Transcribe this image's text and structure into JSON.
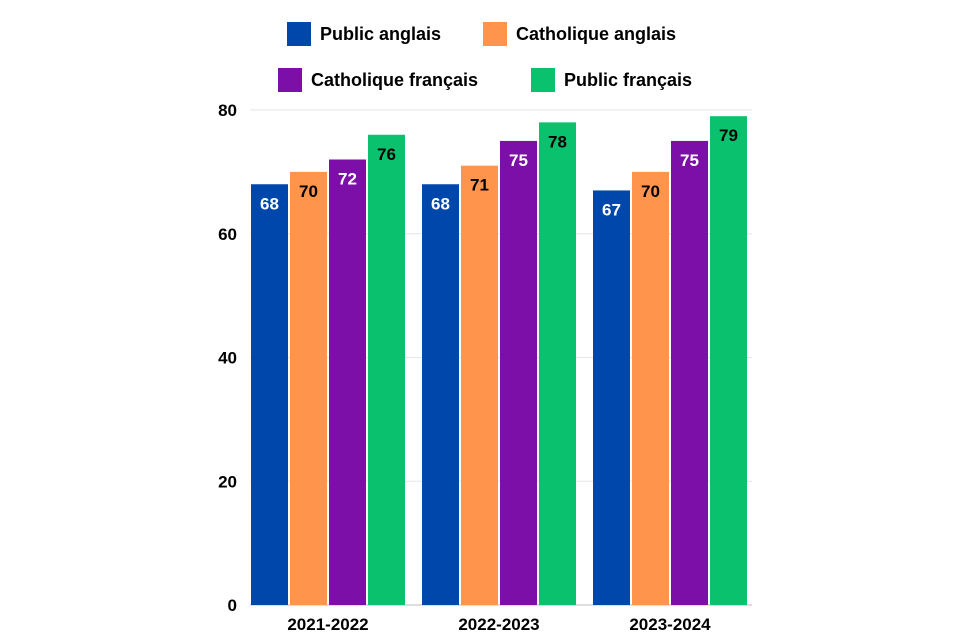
{
  "chart_data": {
    "type": "bar",
    "title": "",
    "xlabel": "",
    "ylabel": "",
    "ylim": [
      0,
      80
    ],
    "yticks": [
      0,
      20,
      40,
      60,
      80
    ],
    "grid": true,
    "legend_position": "top",
    "categories": [
      "2021-2022",
      "2022-2023",
      "2023-2024"
    ],
    "series": [
      {
        "name": "Public anglais",
        "color": "#0047ab",
        "label_color": "#ffffff",
        "values": [
          68,
          68,
          67
        ]
      },
      {
        "name": "Catholique anglais",
        "color": "#ff944d",
        "label_color": "#000000",
        "values": [
          70,
          71,
          70
        ]
      },
      {
        "name": "Catholique français",
        "color": "#7c0fa8",
        "label_color": "#ffffff",
        "values": [
          72,
          75,
          75
        ]
      },
      {
        "name": "Public français",
        "color": "#0ac26e",
        "label_color": "#000000",
        "values": [
          76,
          78,
          79
        ]
      }
    ]
  }
}
